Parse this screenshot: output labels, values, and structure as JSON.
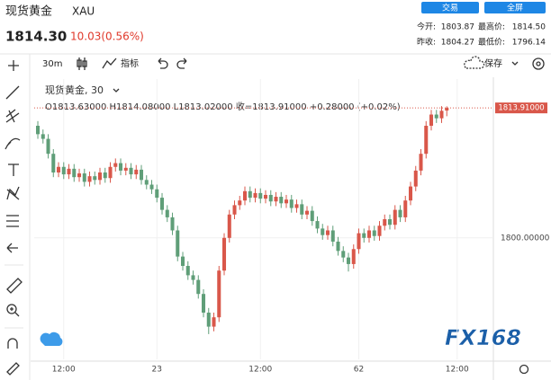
{
  "header": {
    "name": "现货黄金",
    "symbol": "XAU",
    "price": "1814.30",
    "change": "10.03(0.56%)",
    "buttons": [
      "交易",
      "全屏"
    ],
    "stats": [
      {
        "label": "今开:",
        "value": "1803.87"
      },
      {
        "label": "最高价:",
        "value": "1814.50"
      },
      {
        "label": "昨收:",
        "value": "1804.27"
      },
      {
        "label": "最低价:",
        "value": "1796.14"
      }
    ]
  },
  "toolbar": {
    "interval": "30m",
    "indicators": "指标",
    "save": "保存"
  },
  "watermark": "FX168",
  "chart_data": {
    "type": "candlestick",
    "legend_title": "现货黄金, 30",
    "legend_ohlc": "O1813.63000  H1814.08000  L1813.02000  收=1813.91000  +0.28000 (+0.02%)",
    "up_color": "#d9574a",
    "down_color": "#5f9e78",
    "grid": true,
    "categories": [
      null,
      null,
      null,
      null,
      null,
      null,
      null,
      null,
      null,
      null,
      null,
      null,
      null,
      null,
      null,
      null,
      null,
      null,
      null,
      null,
      null,
      null,
      null,
      null,
      null,
      null,
      null,
      null,
      null,
      null,
      null,
      null,
      null,
      null,
      null,
      null,
      null,
      null,
      null,
      null,
      null,
      null,
      null,
      null,
      null,
      null,
      null,
      null,
      null,
      null,
      null,
      null,
      null,
      null,
      null,
      null,
      null,
      null,
      null,
      null,
      null,
      null,
      null,
      null,
      null,
      null,
      null,
      null,
      null,
      null,
      null,
      null,
      null,
      null,
      null,
      null,
      null,
      null,
      null,
      null
    ],
    "open": [
      1812.0,
      1811.1,
      1810.6,
      1809.0,
      1807.0,
      1807.6,
      1806.8,
      1807.4,
      1806.5,
      1806.9,
      1806.0,
      1806.6,
      1806.2,
      1807.0,
      1806.4,
      1807.6,
      1808.0,
      1807.2,
      1807.5,
      1806.8,
      1807.3,
      1806.2,
      1805.7,
      1805.2,
      1804.3,
      1803.0,
      1802.2,
      1800.8,
      1798.0,
      1797.0,
      1796.0,
      1795.5,
      1794.0,
      1792.0,
      1790.5,
      1791.5,
      1796.5,
      1800.0,
      1802.5,
      1803.5,
      1804.0,
      1805.0,
      1804.3,
      1804.8,
      1804.2,
      1804.6,
      1803.9,
      1804.4,
      1803.7,
      1804.1,
      1803.2,
      1803.6,
      1802.5,
      1802.9,
      1801.8,
      1801.0,
      1800.3,
      1800.8,
      1799.6,
      1798.6,
      1797.9,
      1797.2,
      1798.8,
      1800.5,
      1800.0,
      1800.8,
      1800.2,
      1801.3,
      1802.0,
      1801.4,
      1803.0,
      1802.2,
      1804.0,
      1805.5,
      1807.2,
      1809.0,
      1812.0,
      1813.2,
      1812.8,
      1813.63
    ],
    "high": [
      1812.5,
      1811.6,
      1811.1,
      1809.5,
      1808.1,
      1808.1,
      1807.9,
      1807.9,
      1807.4,
      1807.4,
      1807.1,
      1807.1,
      1807.5,
      1807.5,
      1808.1,
      1808.5,
      1808.5,
      1808.0,
      1808.0,
      1807.8,
      1807.8,
      1806.7,
      1806.2,
      1805.7,
      1804.8,
      1803.5,
      1802.7,
      1801.3,
      1798.5,
      1797.5,
      1796.5,
      1796.0,
      1794.5,
      1792.5,
      1792.0,
      1797.0,
      1800.5,
      1803.0,
      1804.0,
      1804.5,
      1805.5,
      1805.5,
      1805.3,
      1805.3,
      1805.1,
      1805.1,
      1804.9,
      1804.9,
      1804.6,
      1804.6,
      1804.1,
      1804.1,
      1803.4,
      1803.4,
      1802.3,
      1801.5,
      1801.3,
      1801.3,
      1800.1,
      1799.1,
      1798.4,
      1799.3,
      1801.0,
      1801.0,
      1801.3,
      1801.3,
      1801.8,
      1802.5,
      1802.5,
      1803.5,
      1803.5,
      1804.5,
      1806.0,
      1807.7,
      1809.5,
      1812.5,
      1813.7,
      1813.7,
      1814.1,
      1814.08
    ],
    "low": [
      1810.6,
      1810.1,
      1808.5,
      1806.5,
      1806.5,
      1806.3,
      1806.3,
      1806.0,
      1806.0,
      1805.5,
      1805.5,
      1805.7,
      1805.7,
      1805.9,
      1805.9,
      1807.1,
      1806.7,
      1806.7,
      1806.3,
      1806.3,
      1805.7,
      1805.2,
      1804.7,
      1803.8,
      1802.5,
      1801.7,
      1800.3,
      1797.5,
      1796.5,
      1795.5,
      1795.0,
      1793.5,
      1791.5,
      1789.7,
      1790.0,
      1791.0,
      1796.0,
      1799.5,
      1802.0,
      1803.0,
      1803.5,
      1803.8,
      1803.8,
      1803.7,
      1803.7,
      1803.4,
      1803.4,
      1803.2,
      1803.2,
      1802.7,
      1802.7,
      1802.0,
      1802.0,
      1801.3,
      1800.5,
      1799.8,
      1799.8,
      1799.1,
      1798.1,
      1797.4,
      1796.4,
      1796.7,
      1798.3,
      1799.5,
      1799.5,
      1799.7,
      1799.7,
      1800.8,
      1800.9,
      1800.9,
      1801.7,
      1801.7,
      1803.5,
      1805.0,
      1806.7,
      1808.5,
      1811.5,
      1812.3,
      1812.3,
      1813.02
    ],
    "close": [
      1811.1,
      1810.6,
      1809.0,
      1807.0,
      1807.6,
      1806.8,
      1807.4,
      1806.5,
      1806.9,
      1806.0,
      1806.6,
      1806.2,
      1807.0,
      1806.4,
      1807.6,
      1808.0,
      1807.2,
      1807.5,
      1806.8,
      1807.3,
      1806.2,
      1805.7,
      1805.2,
      1804.3,
      1803.0,
      1802.2,
      1800.8,
      1798.0,
      1797.0,
      1796.0,
      1795.5,
      1794.0,
      1792.0,
      1790.5,
      1791.5,
      1796.5,
      1800.0,
      1802.5,
      1803.5,
      1804.0,
      1805.0,
      1804.3,
      1804.8,
      1804.2,
      1804.6,
      1803.9,
      1804.4,
      1803.7,
      1804.1,
      1803.2,
      1803.6,
      1802.5,
      1802.9,
      1801.8,
      1801.0,
      1800.3,
      1800.8,
      1799.6,
      1798.6,
      1797.9,
      1797.2,
      1798.8,
      1800.5,
      1800.0,
      1800.8,
      1800.2,
      1801.3,
      1802.0,
      1801.4,
      1803.0,
      1802.2,
      1804.0,
      1805.5,
      1807.2,
      1809.0,
      1812.0,
      1813.2,
      1812.8,
      1813.6,
      1813.91
    ],
    "ylim": [
      1787,
      1817
    ],
    "yticks": [
      {
        "value": 1800,
        "label": "1800.00000"
      }
    ],
    "last_price": {
      "value": 1813.91,
      "label": "1813.91000"
    },
    "xlim": [
      -0.7,
      88
    ],
    "xticks": [
      {
        "value": 5,
        "label": "12:00"
      },
      23,
      {
        "value": 43,
        "label": "12:00"
      },
      62,
      {
        "value": 81,
        "label": "12:00"
      }
    ]
  }
}
